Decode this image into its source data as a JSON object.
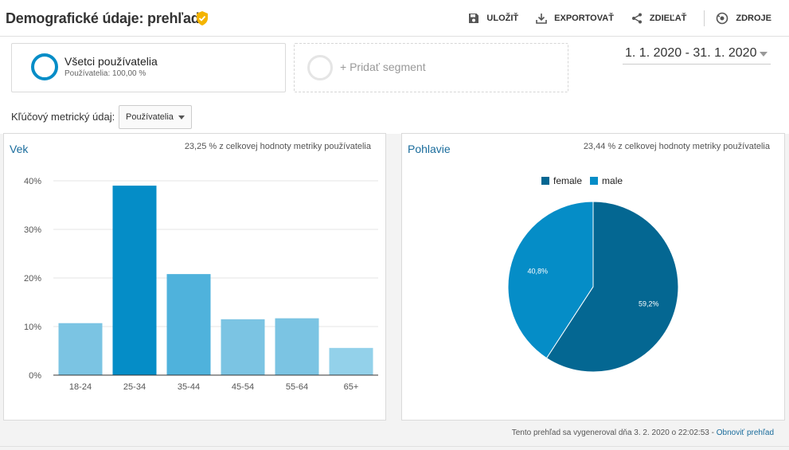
{
  "header": {
    "title": "Demografické údaje: prehľad",
    "actions": {
      "save": "ULOŽIŤ",
      "export": "EXPORTOVAŤ",
      "share": "ZDIEĽAŤ",
      "sources": "ZDROJE"
    },
    "badge_color": "#f4b400"
  },
  "segments": {
    "active": {
      "name": "Všetci používatelia",
      "sub": "Používatelia: 100,00 %",
      "color": "#058dc7"
    },
    "add_label": "+ Pridať segment"
  },
  "date_range": "1. 1. 2020 - 31. 1. 2020",
  "metric": {
    "label": "Kľúčový metrický údaj:",
    "selected": "Používatelia"
  },
  "age_panel": {
    "title": "Vek",
    "note": "23,25 % z celkovej hodnoty metriky používatelia"
  },
  "gender_panel": {
    "title": "Pohlavie",
    "note": "23,44 % z celkovej hodnoty metriky používatelia"
  },
  "chart_data": [
    {
      "type": "bar",
      "categories": [
        "18-24",
        "25-34",
        "35-44",
        "45-54",
        "55-64",
        "65+"
      ],
      "values": [
        10.7,
        39.0,
        20.8,
        11.5,
        11.7,
        5.6
      ],
      "colors": [
        "#7bc4e3",
        "#058dc7",
        "#4fb2dc",
        "#7bc4e3",
        "#7bc4e3",
        "#93d1ea"
      ],
      "yticks": [
        "0%",
        "10%",
        "20%",
        "30%",
        "40%"
      ],
      "ylim": [
        0,
        40
      ],
      "grid": true
    },
    {
      "type": "pie",
      "legend": "top",
      "series": [
        {
          "name": "female",
          "value": 59.2,
          "label": "59,2%",
          "color": "#046792"
        },
        {
          "name": "male",
          "value": 40.8,
          "label": "40,8%",
          "color": "#058dc7"
        }
      ]
    }
  ],
  "footer": {
    "text": "Tento prehľad sa vygeneroval dňa 3. 2. 2020 o 22:02:53 - ",
    "link": "Obnoviť prehľad"
  }
}
